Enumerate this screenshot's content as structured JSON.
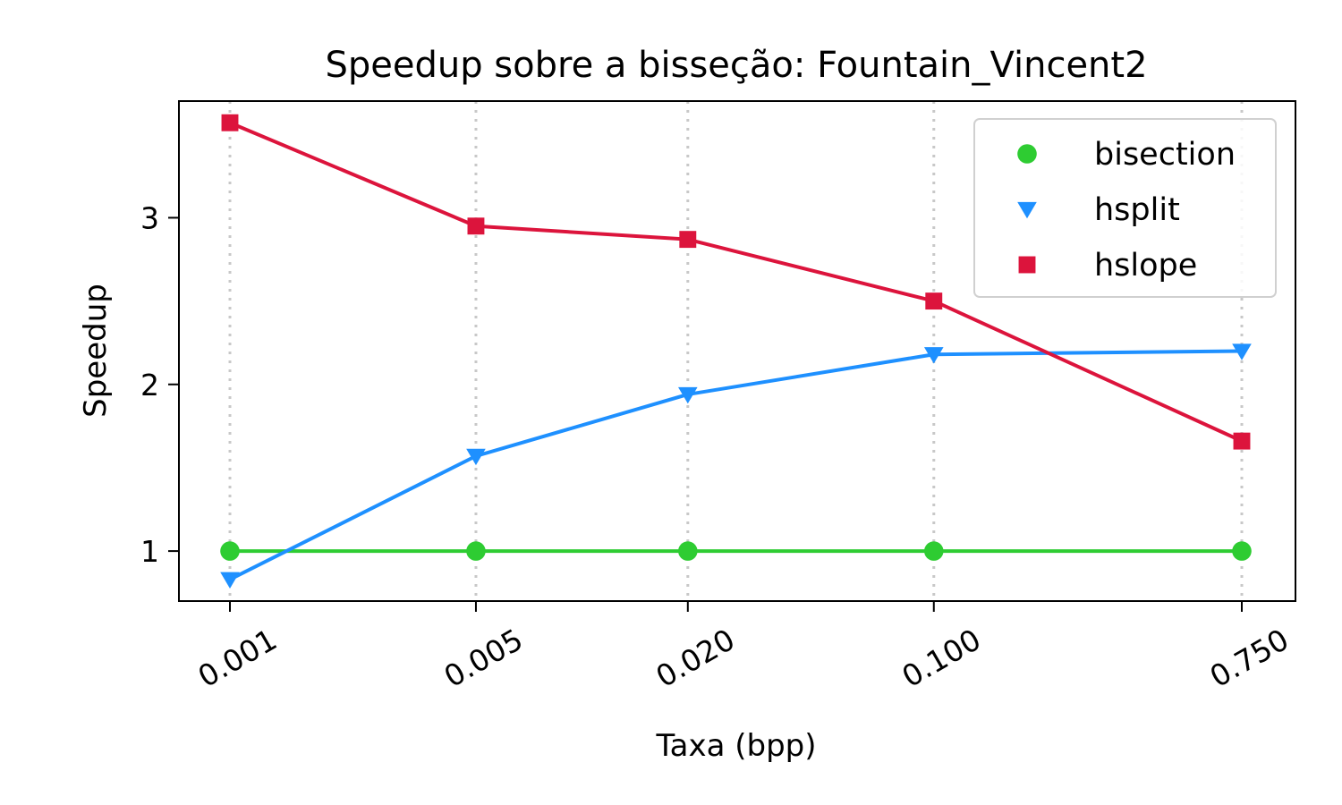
{
  "chart_data": {
    "type": "line",
    "title": "Speedup sobre a bisseção: Fountain_Vincent2",
    "xlabel": "Taxa (bpp)",
    "ylabel": "Speedup",
    "x_scale": "log",
    "x": [
      0.001,
      0.005,
      0.02,
      0.1,
      0.75
    ],
    "x_tick_labels": [
      "0.001",
      "0.005",
      "0.020",
      "0.100",
      "0.750"
    ],
    "yticks": [
      1,
      2,
      3
    ],
    "ylim": [
      0.7,
      3.7
    ],
    "grid": "vertical-dotted",
    "legend_position": "upper-right",
    "series": [
      {
        "name": "bisection",
        "values": [
          1.0,
          1.0,
          1.0,
          1.0,
          1.0
        ],
        "color": "#2ecc32",
        "marker": "circle"
      },
      {
        "name": "hsplit",
        "values": [
          0.83,
          1.57,
          1.94,
          2.18,
          2.2
        ],
        "color": "#1e90ff",
        "marker": "triangle-down"
      },
      {
        "name": "hslope",
        "values": [
          3.57,
          2.95,
          2.87,
          2.5,
          1.66
        ],
        "color": "#dc143c",
        "marker": "square"
      }
    ]
  }
}
